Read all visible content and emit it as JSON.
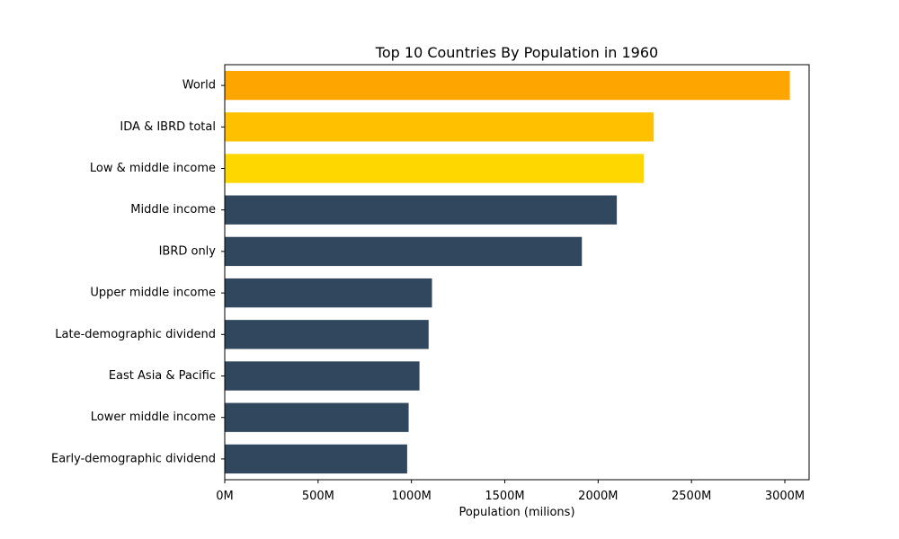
{
  "chart_data": {
    "type": "bar",
    "orientation": "horizontal",
    "title": "Top 10 Countries By Population in 1960",
    "xlabel": "Population (milions)",
    "ylabel": "",
    "categories": [
      "World",
      "IDA & IBRD total",
      "Low & middle income",
      "Middle income",
      "IBRD only",
      "Upper middle income",
      "Late-demographic dividend",
      "East Asia & Pacific",
      "Lower middle income",
      "Early-demographic dividend"
    ],
    "values": [
      3027,
      2297,
      2245,
      2100,
      1913,
      1110,
      1092,
      1043,
      985,
      977
    ],
    "bar_colors": [
      "#FFA500",
      "#FFC000",
      "#FFD700",
      "#30475E",
      "#30475E",
      "#30475E",
      "#30475E",
      "#30475E",
      "#30475E",
      "#30475E"
    ],
    "xlim": [
      0,
      3130
    ],
    "x_ticks": [
      0,
      500,
      1000,
      1500,
      2000,
      2500,
      3000
    ],
    "x_tick_labels": [
      "0M",
      "500M",
      "1000M",
      "1500M",
      "2000M",
      "2500M",
      "3000M"
    ],
    "grid": false,
    "legend": "none"
  }
}
